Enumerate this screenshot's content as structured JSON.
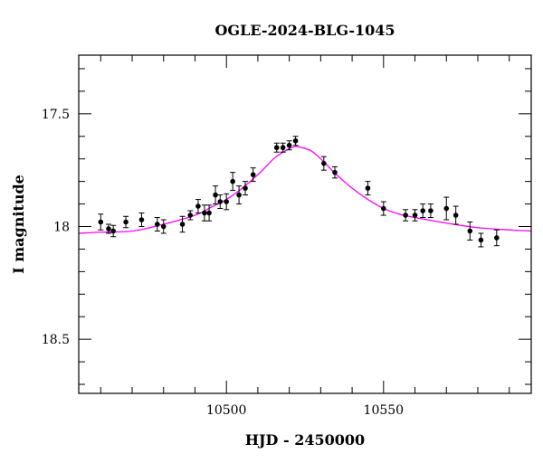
{
  "chart_data": {
    "type": "scatter",
    "title": "OGLE-2024-BLG-1045",
    "xlabel": "HJD - 2450000",
    "ylabel": "I magnitude",
    "xlim": [
      10453,
      10597
    ],
    "ylim": [
      18.74,
      17.24
    ],
    "y_inverted": true,
    "grid": false,
    "legend": "none",
    "x_ticks": [
      10500,
      10550
    ],
    "x_tick_labels": [
      "10500",
      "10550"
    ],
    "y_ticks": [
      17.5,
      18,
      18.5
    ],
    "y_tick_labels": [
      "17.5",
      "18",
      "18.5"
    ],
    "series": [
      {
        "kind": "points",
        "color": "#000000",
        "x": [
          10460,
          10462.5,
          10464,
          10468,
          10473,
          10478,
          10480,
          10486,
          10488.5,
          10491,
          10493,
          10494.5,
          10496.5,
          10498,
          10500,
          10502,
          10504,
          10506,
          10508.5,
          10516,
          10518,
          10520,
          10522,
          10531,
          10534.5,
          10545,
          10550,
          10557,
          10560,
          10562.5,
          10565,
          10570,
          10573,
          10577.5,
          10581,
          10586
        ],
        "y": [
          17.98,
          18.01,
          18.02,
          17.98,
          17.97,
          17.99,
          18.0,
          17.99,
          17.95,
          17.91,
          17.94,
          17.94,
          17.86,
          17.89,
          17.89,
          17.8,
          17.86,
          17.83,
          17.77,
          17.65,
          17.65,
          17.64,
          17.62,
          17.72,
          17.76,
          17.83,
          17.92,
          17.95,
          17.95,
          17.93,
          17.93,
          17.92,
          17.95,
          18.02,
          18.06,
          18.05
        ],
        "yerr": [
          0.035,
          0.02,
          0.025,
          0.025,
          0.03,
          0.03,
          0.03,
          0.035,
          0.02,
          0.03,
          0.035,
          0.035,
          0.04,
          0.03,
          0.035,
          0.04,
          0.04,
          0.03,
          0.03,
          0.02,
          0.02,
          0.02,
          0.02,
          0.03,
          0.025,
          0.03,
          0.03,
          0.025,
          0.025,
          0.03,
          0.03,
          0.05,
          0.04,
          0.04,
          0.03,
          0.035
        ]
      },
      {
        "kind": "model",
        "color": "#ff00ff",
        "x": [
          10453,
          10460,
          10470,
          10480,
          10490,
          10495,
          10500,
          10505,
          10510,
          10515,
          10518,
          10520,
          10522,
          10524,
          10527,
          10530,
          10535,
          10540,
          10545,
          10550,
          10555,
          10560,
          10570,
          10580,
          10590,
          10597
        ],
        "y": [
          18.03,
          18.025,
          18.02,
          17.99,
          17.95,
          17.915,
          17.88,
          17.83,
          17.77,
          17.7,
          17.67,
          17.655,
          17.645,
          17.65,
          17.665,
          17.7,
          17.77,
          17.83,
          17.88,
          17.92,
          17.945,
          17.96,
          17.985,
          18.005,
          18.015,
          18.02
        ]
      }
    ]
  }
}
